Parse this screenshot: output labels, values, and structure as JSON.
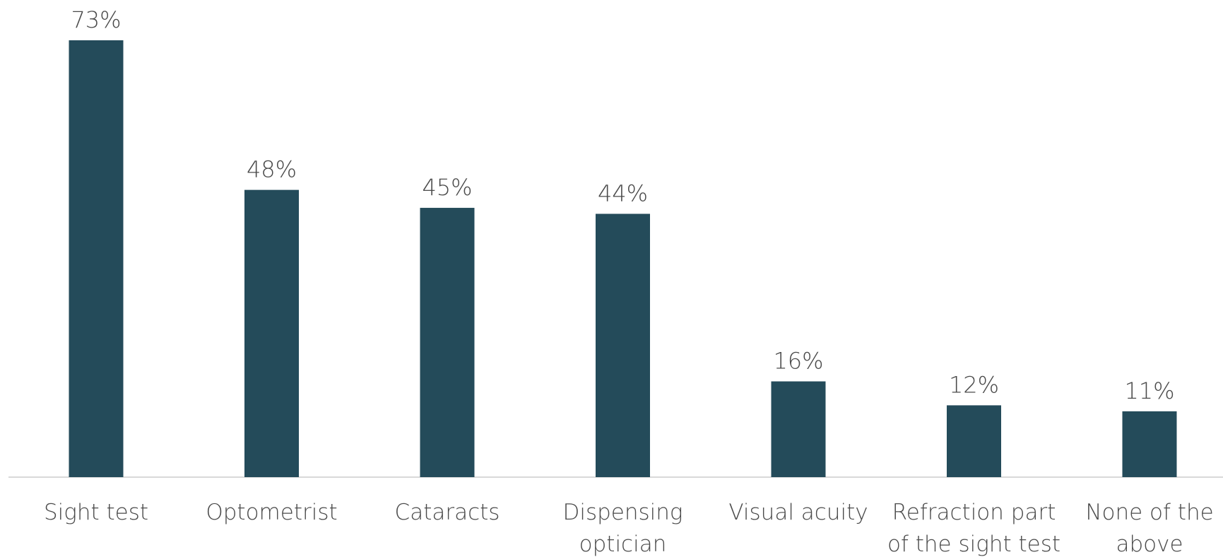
{
  "chart_data": {
    "type": "bar",
    "categories": [
      [
        "Sight test"
      ],
      [
        "Optometrist"
      ],
      [
        "Cataracts"
      ],
      [
        "Dispensing",
        "optician"
      ],
      [
        "Visual acuity"
      ],
      [
        "Refraction part",
        "of the sight test"
      ],
      [
        "None of the",
        "above"
      ]
    ],
    "values": [
      73,
      48,
      45,
      44,
      16,
      12,
      11
    ],
    "value_labels": [
      "73%",
      "48%",
      "45%",
      "44%",
      "16%",
      "12%",
      "11%"
    ],
    "ylim": [
      0,
      73
    ],
    "grid": false,
    "legend": "none",
    "colors": {
      "bar": "#244b5a",
      "axis": "#d9d9d9",
      "text": "#4a4a4a"
    }
  }
}
